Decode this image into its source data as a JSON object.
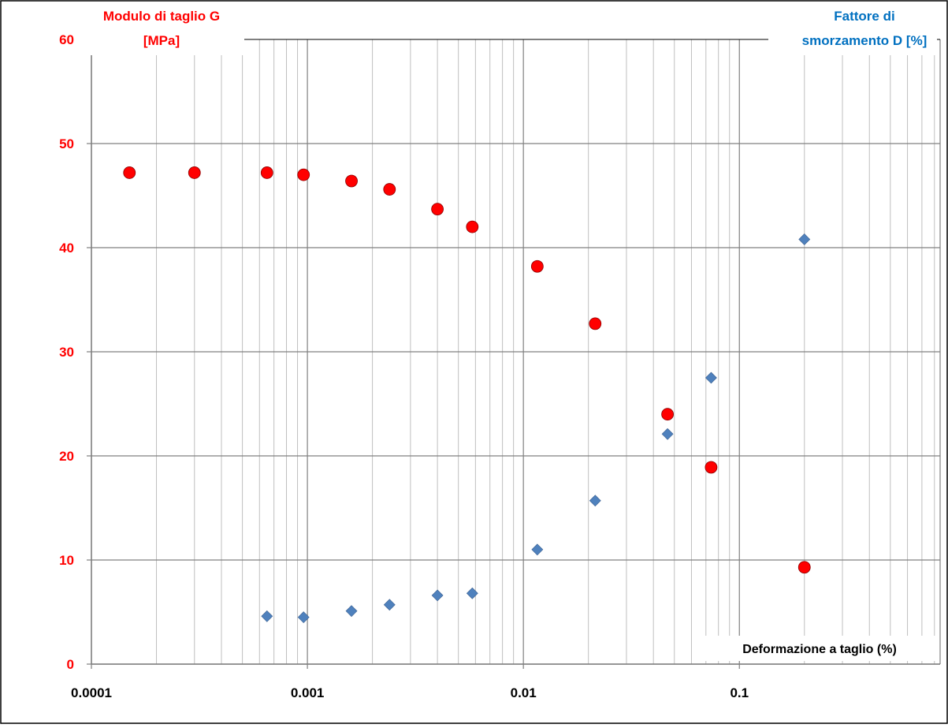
{
  "chart_data": {
    "type": "scatter",
    "x_scale": "log",
    "xlim": [
      0.0001,
      0.85
    ],
    "ylim": [
      0,
      60
    ],
    "y_ticks": [
      0,
      10,
      20,
      30,
      40,
      50,
      60
    ],
    "x_major_ticks": [
      0.0001,
      0.001,
      0.01,
      0.1
    ],
    "x_tick_labels": [
      "0.0001",
      "0.001",
      "0.01",
      "0.1"
    ],
    "y_tick_labels": [
      "0",
      "10",
      "20",
      "30",
      "40",
      "50",
      "60"
    ],
    "grid": true,
    "ylabel_left": [
      "Modulo di taglio G",
      "[MPa]"
    ],
    "ylabel_right": [
      "Fattore di",
      "smorzamento  D [%]"
    ],
    "xlabel": "Deformazione a taglio (%)",
    "colors": {
      "left_axis": "#ff0000",
      "right_axis": "#0070c0",
      "series_g": "#ff0000",
      "series_d": "#4f81bd",
      "grid": "#bfbfbf",
      "axis": "#7f7f7f"
    },
    "series": [
      {
        "marker": "circle",
        "color": "#ff0000",
        "x": [
          0.00015,
          0.0003,
          0.00065,
          0.00096,
          0.0016,
          0.0024,
          0.004,
          0.0058,
          0.0116,
          0.0215,
          0.0465,
          0.074,
          0.2
        ],
        "y": [
          47.2,
          47.2,
          47.2,
          47.0,
          46.4,
          45.6,
          43.7,
          42.0,
          38.2,
          32.7,
          24.0,
          18.9,
          9.3
        ]
      },
      {
        "marker": "diamond",
        "color": "#4f81bd",
        "x": [
          0.00065,
          0.00096,
          0.0016,
          0.0024,
          0.004,
          0.0058,
          0.0116,
          0.0215,
          0.0465,
          0.074,
          0.2
        ],
        "y": [
          4.6,
          4.5,
          5.1,
          5.7,
          6.6,
          6.8,
          11.0,
          15.7,
          22.1,
          27.5,
          40.8
        ]
      }
    ]
  }
}
